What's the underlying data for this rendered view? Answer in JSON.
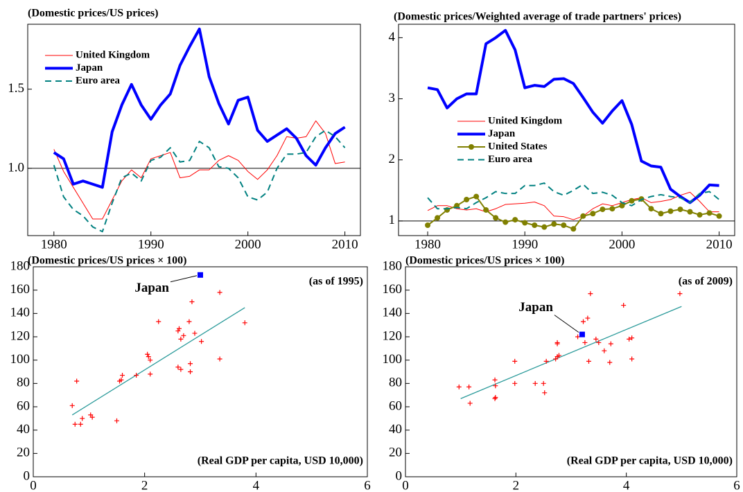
{
  "chart_data": [
    {
      "type": "line",
      "title": "(Domestic prices/US prices)",
      "x": [
        1980,
        1981,
        1982,
        1983,
        1984,
        1985,
        1986,
        1987,
        1988,
        1989,
        1990,
        1991,
        1992,
        1993,
        1994,
        1995,
        1996,
        1997,
        1998,
        1999,
        2000,
        2001,
        2002,
        2003,
        2004,
        2005,
        2006,
        2007,
        2008,
        2009,
        2010
      ],
      "xlim": [
        1977.3,
        2011.6
      ],
      "xticks": [
        1980,
        1990,
        2000,
        2010
      ],
      "ylim": [
        0.575,
        1.91
      ],
      "yticks": [
        {
          "value": 1,
          "label": "1.0"
        },
        1.5
      ],
      "reference_line": 1,
      "legend": "upper left",
      "series": [
        {
          "name": "United Kingdom",
          "color": "#ff0000",
          "width": 1,
          "values": [
            1.12,
            0.98,
            0.88,
            0.78,
            0.68,
            0.68,
            0.8,
            0.92,
            0.99,
            0.94,
            1.06,
            1.08,
            1.1,
            0.94,
            0.95,
            0.99,
            0.99,
            1.05,
            1.08,
            1.05,
            0.98,
            0.93,
            0.99,
            1.08,
            1.2,
            1.19,
            1.2,
            1.3,
            1.22,
            1.03,
            1.04
          ]
        },
        {
          "name": "Japan",
          "color": "#0000ff",
          "width": 4,
          "values": [
            1.1,
            1.06,
            0.9,
            0.92,
            0.9,
            0.88,
            1.23,
            1.4,
            1.53,
            1.4,
            1.31,
            1.4,
            1.47,
            1.65,
            1.77,
            1.88,
            1.58,
            1.41,
            1.28,
            1.43,
            1.45,
            1.24,
            1.17,
            1.21,
            1.25,
            1.19,
            1.08,
            1.02,
            1.13,
            1.22,
            1.26
          ]
        },
        {
          "name": "Euro area",
          "color": "#008080",
          "width": 2,
          "dash": "9,6",
          "values": [
            1.02,
            0.82,
            0.74,
            0.7,
            0.63,
            0.6,
            0.78,
            0.94,
            0.97,
            0.92,
            1.05,
            1.07,
            1.13,
            1.04,
            1.05,
            1.17,
            1.13,
            1.01,
            1.0,
            0.94,
            0.82,
            0.8,
            0.85,
            1.0,
            1.09,
            1.09,
            1.1,
            1.2,
            1.24,
            1.2,
            1.13
          ]
        }
      ]
    },
    {
      "type": "line",
      "title": "(Domestic prices/Weighted average of trade partners' prices)",
      "x": [
        1980,
        1981,
        1982,
        1983,
        1984,
        1985,
        1986,
        1987,
        1988,
        1989,
        1990,
        1991,
        1992,
        1993,
        1994,
        1995,
        1996,
        1997,
        1998,
        1999,
        2000,
        2001,
        2002,
        2003,
        2004,
        2005,
        2006,
        2007,
        2008,
        2009,
        2010
      ],
      "xlim": [
        1977.0,
        2011.6
      ],
      "xticks": [
        1980,
        1990,
        2000,
        2010
      ],
      "ylim": [
        0.76,
        4.22
      ],
      "yticks": [
        1,
        2,
        3,
        4
      ],
      "reference_line": 1,
      "legend": "center left",
      "series": [
        {
          "name": "United Kingdom",
          "color": "#ff0000",
          "width": 1,
          "values": [
            1.17,
            1.25,
            1.25,
            1.2,
            1.18,
            1.2,
            1.15,
            1.2,
            1.27,
            1.28,
            1.29,
            1.31,
            1.25,
            1.08,
            1.07,
            1.02,
            1.08,
            1.2,
            1.28,
            1.25,
            1.3,
            1.35,
            1.38,
            1.3,
            1.32,
            1.35,
            1.42,
            1.47,
            1.32,
            1.15,
            1.15
          ]
        },
        {
          "name": "Japan",
          "color": "#0000ff",
          "width": 4,
          "values": [
            3.18,
            3.15,
            2.85,
            3.0,
            3.08,
            3.08,
            3.9,
            4.0,
            4.12,
            3.8,
            3.18,
            3.22,
            3.2,
            3.32,
            3.33,
            3.25,
            3.02,
            2.78,
            2.6,
            2.8,
            2.97,
            2.58,
            1.98,
            1.9,
            1.88,
            1.52,
            1.4,
            1.3,
            1.42,
            1.59,
            1.58
          ]
        },
        {
          "name": "United States",
          "color": "#808000",
          "width": 2,
          "marker": "circle",
          "values": [
            0.93,
            1.05,
            1.18,
            1.25,
            1.35,
            1.4,
            1.18,
            1.05,
            0.98,
            1.02,
            0.97,
            0.93,
            0.9,
            0.95,
            0.93,
            0.87,
            1.08,
            1.12,
            1.19,
            1.2,
            1.25,
            1.33,
            1.36,
            1.2,
            1.12,
            1.16,
            1.19,
            1.15,
            1.1,
            1.13,
            1.08
          ]
        },
        {
          "name": "Euro area",
          "color": "#008080",
          "width": 2,
          "dash": "9,6",
          "values": [
            1.38,
            1.2,
            1.2,
            1.22,
            1.2,
            1.3,
            1.38,
            1.48,
            1.45,
            1.45,
            1.58,
            1.58,
            1.62,
            1.48,
            1.42,
            1.5,
            1.6,
            1.45,
            1.47,
            1.42,
            1.3,
            1.25,
            1.35,
            1.4,
            1.43,
            1.4,
            1.38,
            1.3,
            1.45,
            1.48,
            1.35
          ]
        }
      ]
    },
    {
      "type": "scatter",
      "title": "(Domestic prices/US prices × 100)",
      "note": "(as of 1995)",
      "xlabel": "(Real GDP per capita, USD 10,000)",
      "xlim": [
        0,
        6
      ],
      "xticks": [
        0,
        2,
        4,
        6
      ],
      "ylim": [
        0,
        180
      ],
      "yticks": [
        0,
        20,
        40,
        60,
        80,
        100,
        120,
        140,
        160,
        180
      ],
      "color": "#ff0000",
      "x": [
        0.7,
        0.75,
        0.78,
        0.85,
        0.88,
        1.03,
        1.06,
        1.5,
        1.55,
        1.58,
        1.6,
        1.85,
        2.05,
        2.07,
        2.1,
        2.1,
        2.25,
        2.6,
        2.62,
        2.65,
        2.6,
        2.65,
        2.7,
        2.8,
        2.85,
        2.82,
        2.82,
        2.9,
        3.02,
        3.35,
        3.35,
        3.8
      ],
      "y": [
        61,
        45,
        82,
        45,
        50,
        53,
        51,
        48,
        82,
        83,
        87,
        87,
        105,
        103,
        100,
        88,
        133,
        125,
        127,
        118,
        94,
        92,
        121,
        133,
        150,
        97,
        90,
        123,
        116,
        158,
        101,
        132
      ],
      "highlight": {
        "label": "Japan",
        "x": 3.0,
        "y": 173,
        "color": "#0000ff"
      },
      "trend_line": {
        "color": "#2a9a9a",
        "x": [
          0.7,
          3.8
        ],
        "y": [
          53,
          145
        ]
      }
    },
    {
      "type": "scatter",
      "title": "(Domestic prices/US prices × 100)",
      "note": "(as of 2009)",
      "xlabel": "(Real GDP per capita, USD 10,000)",
      "xlim": [
        0,
        6
      ],
      "xticks": [
        0,
        2,
        4,
        6
      ],
      "ylim": [
        0,
        180
      ],
      "yticks": [
        0,
        20,
        40,
        60,
        80,
        100,
        120,
        140,
        160,
        180
      ],
      "color": "#ff0000",
      "x": [
        0.97,
        1.15,
        1.17,
        1.62,
        1.63,
        1.63,
        1.62,
        1.98,
        1.98,
        2.35,
        2.5,
        2.52,
        2.55,
        2.72,
        2.75,
        2.75,
        2.78,
        2.75,
        3.12,
        3.25,
        3.22,
        3.3,
        3.35,
        3.32,
        3.45,
        3.5,
        3.6,
        3.7,
        3.72,
        3.95,
        4.05,
        4.1,
        4.1,
        4.97
      ],
      "y": [
        77,
        77,
        63,
        83,
        78,
        68,
        67,
        99,
        80,
        80,
        80,
        72,
        99,
        101,
        103,
        114,
        104,
        115,
        120,
        115,
        133,
        136,
        157,
        99,
        118,
        115,
        108,
        98,
        114,
        147,
        118,
        119,
        101,
        157
      ],
      "highlight": {
        "label": "Japan",
        "x": 3.2,
        "y": 122,
        "color": "#0000ff"
      },
      "trend_line": {
        "color": "#2a9a9a",
        "x": [
          1.0,
          5.0
        ],
        "y": [
          67,
          146
        ]
      }
    }
  ]
}
